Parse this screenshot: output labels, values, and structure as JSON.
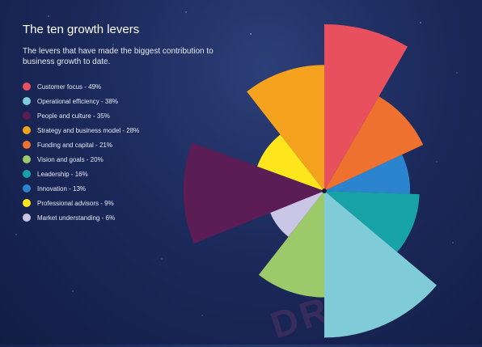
{
  "title": "The ten growth levers",
  "subtitle": "The levers that have made the biggest contribution to business growth to date.",
  "watermark": "DRAFT",
  "chart_data": {
    "type": "polar-area",
    "title": "The ten growth levers",
    "series": [
      {
        "label": "Customer focus - 49%",
        "name": "Customer focus",
        "value": 49,
        "color": "#e8505e",
        "icon": "circle"
      },
      {
        "label": "Operational efficiency - 38%",
        "name": "Operational efficiency",
        "value": 38,
        "color": "#7fccd8",
        "icon": "circle"
      },
      {
        "label": "People and culture - 35%",
        "name": "People and culture",
        "value": 35,
        "color": "#5c1d54",
        "icon": "circle"
      },
      {
        "label": "Strategy and business model - 28%",
        "name": "Strategy and business model",
        "value": 28,
        "color": "#f5a21f",
        "icon": "circle"
      },
      {
        "label": "Funding and capital - 21%",
        "name": "Funding and capital",
        "value": 21,
        "color": "#ef7130",
        "icon": "circle"
      },
      {
        "label": "Vision and goals - 20%",
        "name": "Vision and goals",
        "value": 20,
        "color": "#9cca6a",
        "icon": "circle"
      },
      {
        "label": "Leadership - 16%",
        "name": "Leadership",
        "value": 16,
        "color": "#17a2a8",
        "icon": "circle"
      },
      {
        "label": "Innovation - 13%",
        "name": "Innovation",
        "value": 13,
        "color": "#2c84cf",
        "icon": "circle"
      },
      {
        "label": "Professional advisors - 9%",
        "name": "Professional advisors",
        "value": 9,
        "color": "#ffe51c",
        "icon": "circle"
      },
      {
        "label": "Market understanding - 6%",
        "name": "Market understanding",
        "value": 6,
        "color": "#c9c5e4",
        "icon": "circle"
      }
    ],
    "segments": [
      {
        "name": "Customer focus",
        "start_deg": 0,
        "end_deg": 30
      },
      {
        "name": "Funding and capital",
        "start_deg": 30,
        "end_deg": 65
      },
      {
        "name": "Innovation",
        "start_deg": 65,
        "end_deg": 92
      },
      {
        "name": "Leadership",
        "start_deg": 92,
        "end_deg": 130
      },
      {
        "name": "Operational efficiency",
        "start_deg": 130,
        "end_deg": 180
      },
      {
        "name": "Vision and goals",
        "start_deg": 180,
        "end_deg": 218
      },
      {
        "name": "Market understanding",
        "start_deg": 218,
        "end_deg": 248
      },
      {
        "name": "People and culture",
        "start_deg": 248,
        "end_deg": 290
      },
      {
        "name": "Professional advisors",
        "start_deg": 290,
        "end_deg": 322
      },
      {
        "name": "Strategy and business model",
        "start_deg": 322,
        "end_deg": 360
      }
    ],
    "legend_position": "left",
    "grid": false,
    "background": "#1c2a5c"
  }
}
